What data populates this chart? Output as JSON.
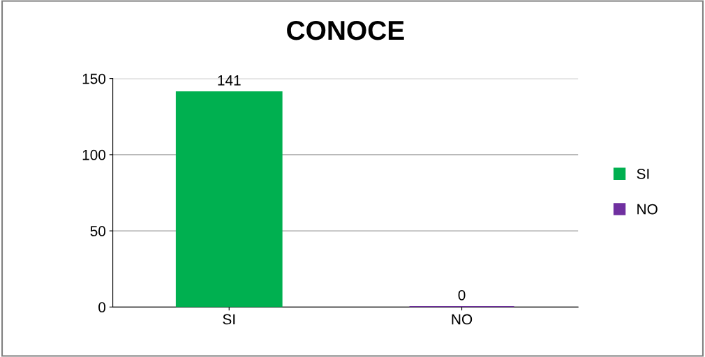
{
  "chart_data": {
    "type": "bar",
    "title": "CONOCE",
    "categories": [
      "SI",
      "NO"
    ],
    "series": [
      {
        "name": "SI",
        "color": "#00b050",
        "values": [
          141,
          null
        ]
      },
      {
        "name": "NO",
        "color": "#7030a0",
        "values": [
          null,
          0
        ]
      }
    ],
    "ylim": [
      0,
      150
    ],
    "yticks": [
      0,
      50,
      100,
      150
    ],
    "grid": "y",
    "legend": "right",
    "data_labels": true
  }
}
